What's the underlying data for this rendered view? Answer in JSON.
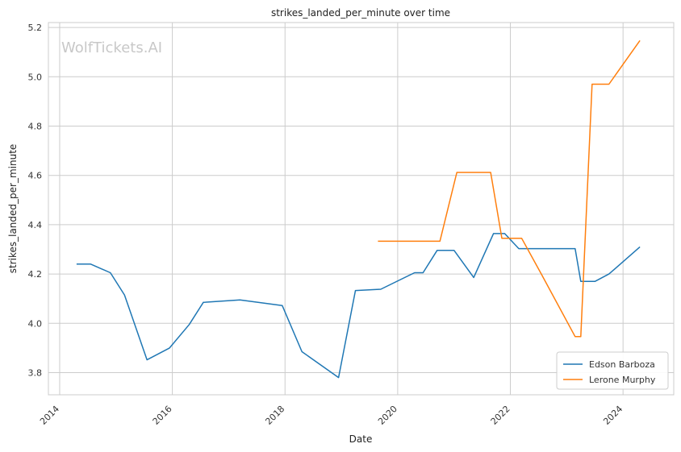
{
  "chart_data": {
    "type": "line",
    "title": "strikes_landed_per_minute over time",
    "xlabel": "Date",
    "ylabel": "strikes_landed_per_minute",
    "watermark": "WolfTickets.AI",
    "xlim": [
      2013.8,
      2024.9
    ],
    "ylim": [
      3.71,
      5.22
    ],
    "xticks": [
      2014,
      2016,
      2018,
      2020,
      2022,
      2024
    ],
    "xtick_labels": [
      "2014",
      "2016",
      "2018",
      "2020",
      "2022",
      "2024"
    ],
    "yticks": [
      3.8,
      4.0,
      4.2,
      4.4,
      4.6,
      4.8,
      5.0,
      5.2
    ],
    "ytick_labels": [
      "3.8",
      "4.0",
      "4.2",
      "4.4",
      "4.6",
      "4.8",
      "5.0",
      "5.2"
    ],
    "grid": true,
    "legend_position": "bottom-right",
    "series": [
      {
        "name": "Edson Barboza",
        "color": "#1f77b4",
        "x": [
          2014.3,
          2014.55,
          2014.9,
          2015.15,
          2015.55,
          2015.95,
          2016.3,
          2016.55,
          2017.2,
          2017.95,
          2018.3,
          2018.95,
          2019.25,
          2019.7,
          2020.3,
          2020.45,
          2020.7,
          2021.0,
          2021.35,
          2021.7,
          2021.9,
          2022.15,
          2022.55,
          2023.15,
          2023.25,
          2023.5,
          2023.75,
          2024.3
        ],
        "y": [
          4.24,
          4.24,
          4.205,
          4.115,
          3.852,
          3.9,
          3.995,
          4.085,
          4.095,
          4.072,
          3.885,
          3.78,
          4.133,
          4.138,
          4.205,
          4.205,
          4.296,
          4.296,
          4.186,
          4.364,
          4.364,
          4.303,
          4.303,
          4.303,
          4.17,
          4.17,
          4.2,
          4.31
        ]
      },
      {
        "name": "Lerone Murphy",
        "color": "#ff7f0e",
        "x": [
          2019.65,
          2020.05,
          2020.45,
          2020.75,
          2021.05,
          2021.3,
          2021.65,
          2021.85,
          2022.2,
          2022.55,
          2023.15,
          2023.25,
          2023.45,
          2023.75,
          2024.3
        ],
        "y": [
          4.333,
          4.333,
          4.333,
          4.333,
          4.612,
          4.612,
          4.612,
          4.345,
          4.345,
          4.2,
          3.946,
          3.946,
          4.97,
          4.97,
          5.147
        ]
      }
    ]
  }
}
